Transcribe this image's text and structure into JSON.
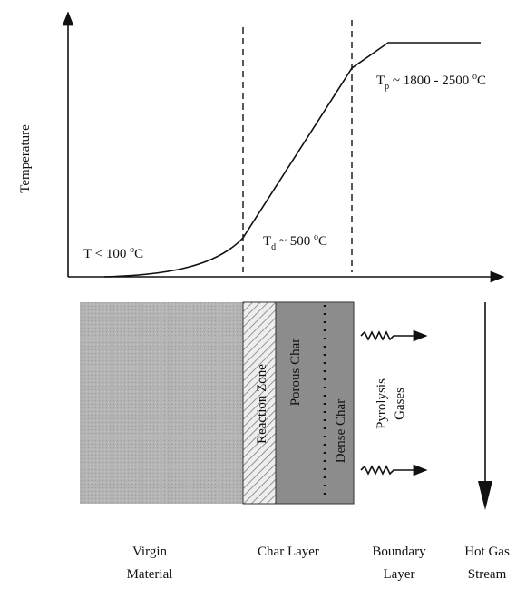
{
  "graph": {
    "y_axis_label": "Temperature",
    "annotations": [
      {
        "main": "T < 100 ",
        "sup": "o",
        "rest": "C"
      },
      {
        "main": "T",
        "sub": "d",
        "mid": " ~ 500 ",
        "sup": "o",
        "rest": "C"
      },
      {
        "main": "T",
        "sub": "p",
        "mid": " ~ 1800 - 2500 ",
        "sup": "o",
        "rest": "C"
      }
    ]
  },
  "layers": {
    "zones": [
      "Reaction Zone",
      "Porous Char",
      "Dense Char"
    ],
    "gases": [
      "Pyrolysis",
      "Gases"
    ]
  },
  "regions": [
    {
      "lines": [
        "Virgin",
        "Material"
      ]
    },
    {
      "lines": [
        "Char Layer"
      ]
    },
    {
      "lines": [
        "Boundary",
        "Layer"
      ]
    },
    {
      "lines": [
        "Hot Gas",
        "Stream"
      ]
    }
  ]
}
